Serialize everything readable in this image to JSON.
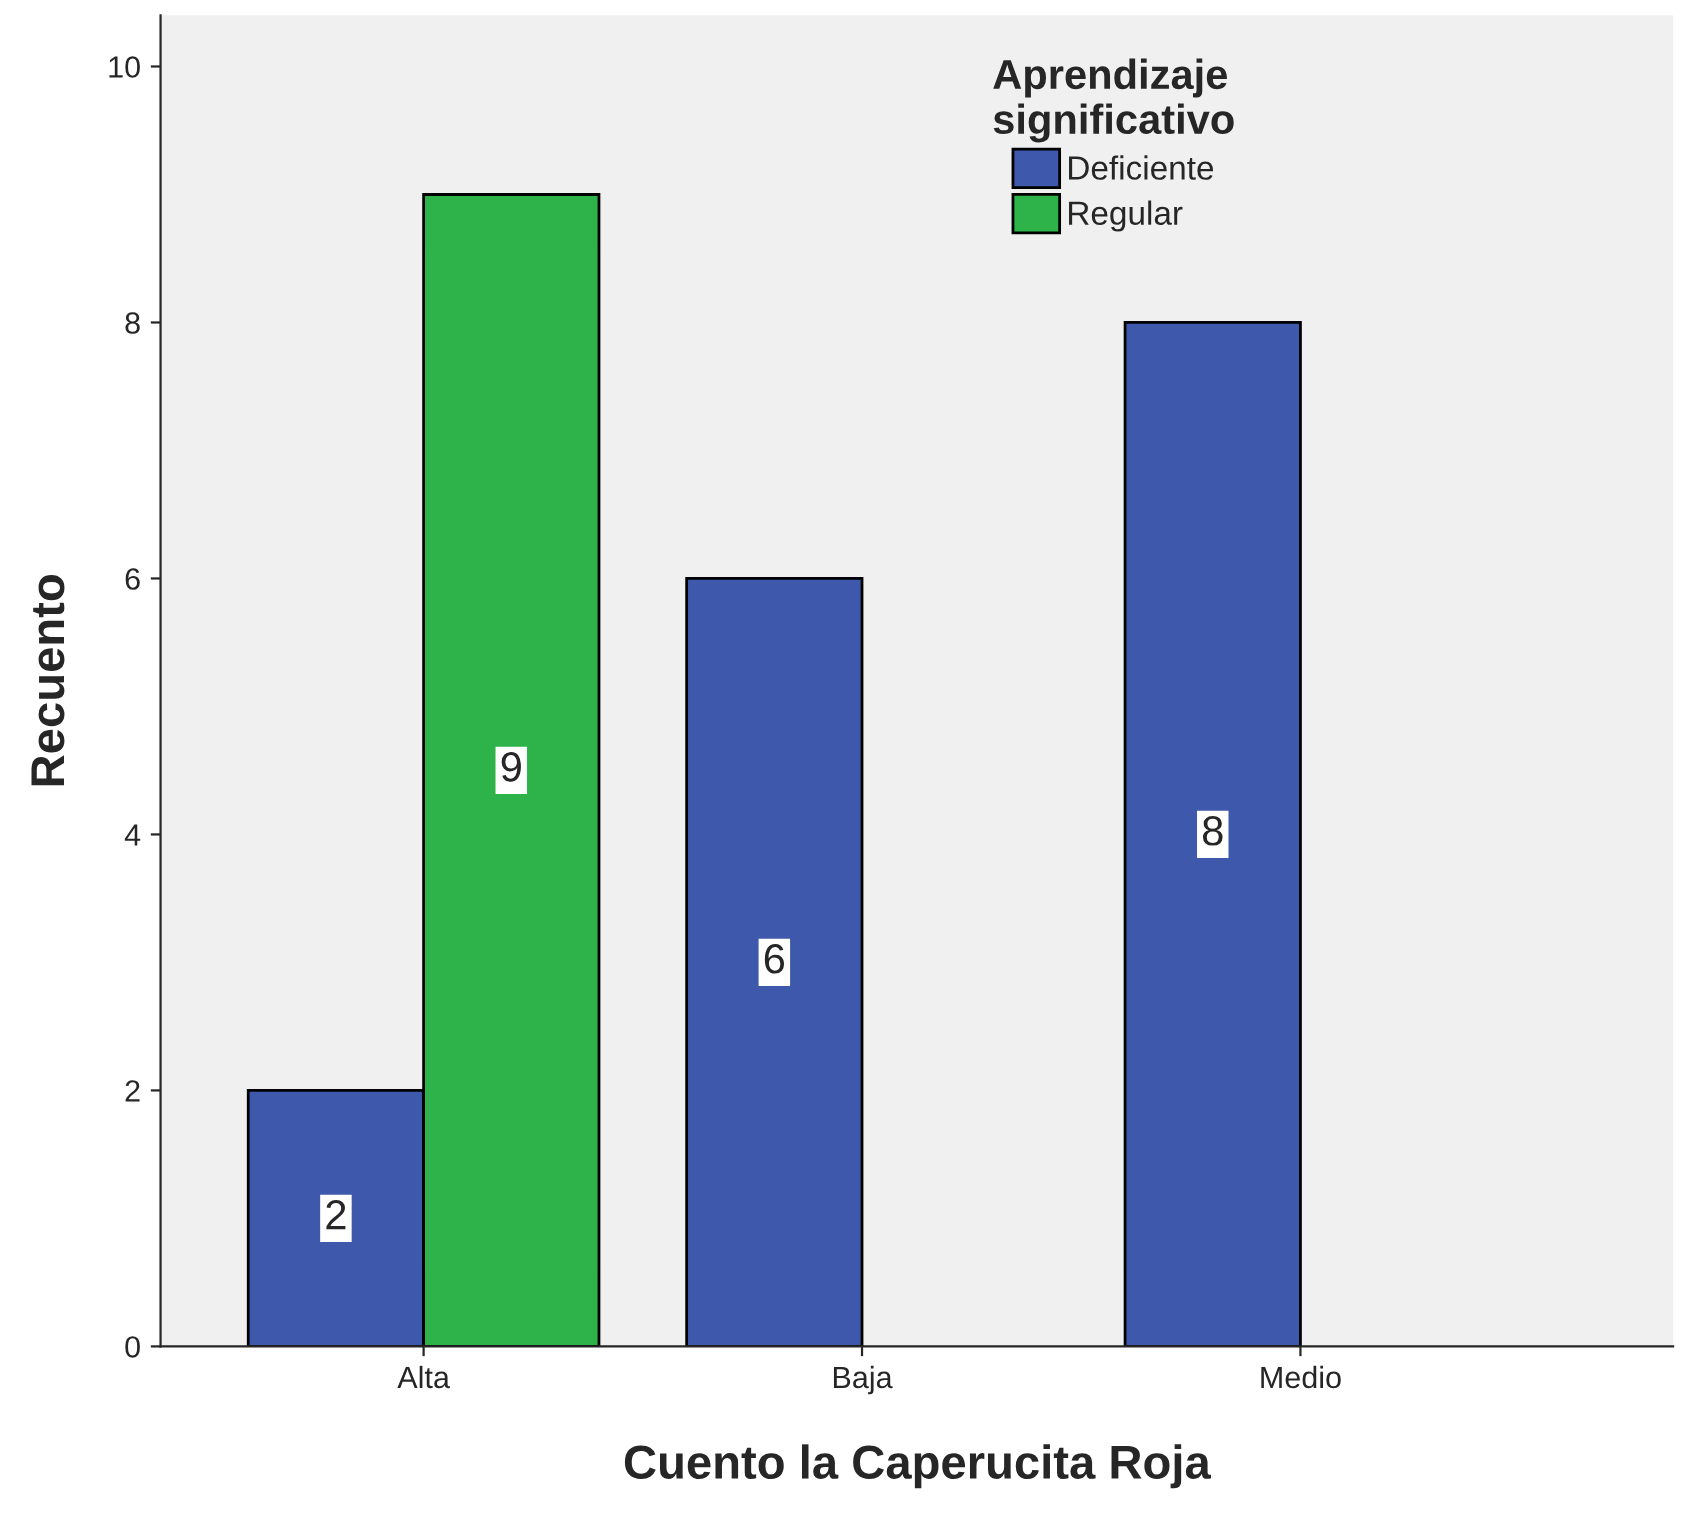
{
  "chart_data": {
    "type": "bar",
    "xlabel": "Cuento la Caperucita Roja",
    "ylabel": "Recuento",
    "legend_title": "Aprendizaje\nsignificativo",
    "categories": [
      "Alta",
      "Baja",
      "Medio"
    ],
    "series": [
      {
        "name": "Deficiente",
        "color": "#3e58ac",
        "values": [
          2,
          6,
          8
        ]
      },
      {
        "name": "Regular",
        "color": "#2db34a",
        "values": [
          9,
          null,
          null
        ]
      }
    ],
    "ylim": [
      0,
      10.4
    ],
    "yticks": [
      0,
      2,
      4,
      6,
      8,
      10
    ],
    "data_labels": true,
    "legend": "top",
    "grid": false
  }
}
